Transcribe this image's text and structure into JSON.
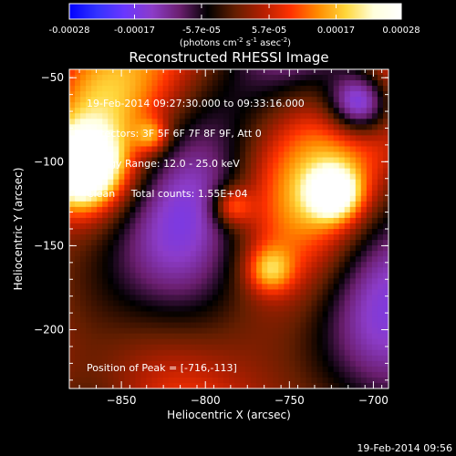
{
  "colorbar": {
    "ticks": [
      "-0.00028",
      "-0.00017",
      "-5.7e-05",
      "5.7e-05",
      "0.00017",
      "0.00028"
    ],
    "tick_values": [
      -0.00028,
      -0.00017,
      -5.7e-05,
      5.7e-05,
      0.00017,
      0.00028
    ],
    "min": -0.00028,
    "max": 0.00028,
    "units_parts": [
      "(photons cm",
      "-2",
      " s",
      "-1",
      " asec",
      "-2",
      ")"
    ],
    "colors": [
      "#0000ff",
      "#3333ff",
      "#6a37ff",
      "#8c3cc8",
      "#6a1e6e",
      "#000000",
      "#641e00",
      "#b41e00",
      "#ff3200",
      "#ff8c00",
      "#ffd73c",
      "#ffffdc",
      "#ffffff"
    ]
  },
  "chart_data": {
    "type": "heatmap",
    "title": "Reconstructed RHESSI Image",
    "xlabel": "Heliocentric X (arcsec)",
    "ylabel": "Heliocentric Y (arcsec)",
    "xlim": [
      -881,
      -691
    ],
    "ylim": [
      -235,
      -45
    ],
    "x_ticks": [
      -850,
      -800,
      -750,
      -700
    ],
    "y_ticks": [
      -50,
      -100,
      -150,
      -200
    ],
    "peak": [
      -716,
      -113
    ],
    "info": {
      "time": "19-Feb-2014 09:27:30.000 to 09:33:16.000",
      "detectors": "Detectors: 3F 5F 6F 7F 8F 9F, Att 0",
      "energy": "Energy Range: 12.0 - 25.0 keV",
      "clean": "Clean     Total counts: 1.55E+04"
    },
    "peak_label": "Position of Peak = [-716,-113]"
  },
  "timestamp": "19-Feb-2014 09:56"
}
